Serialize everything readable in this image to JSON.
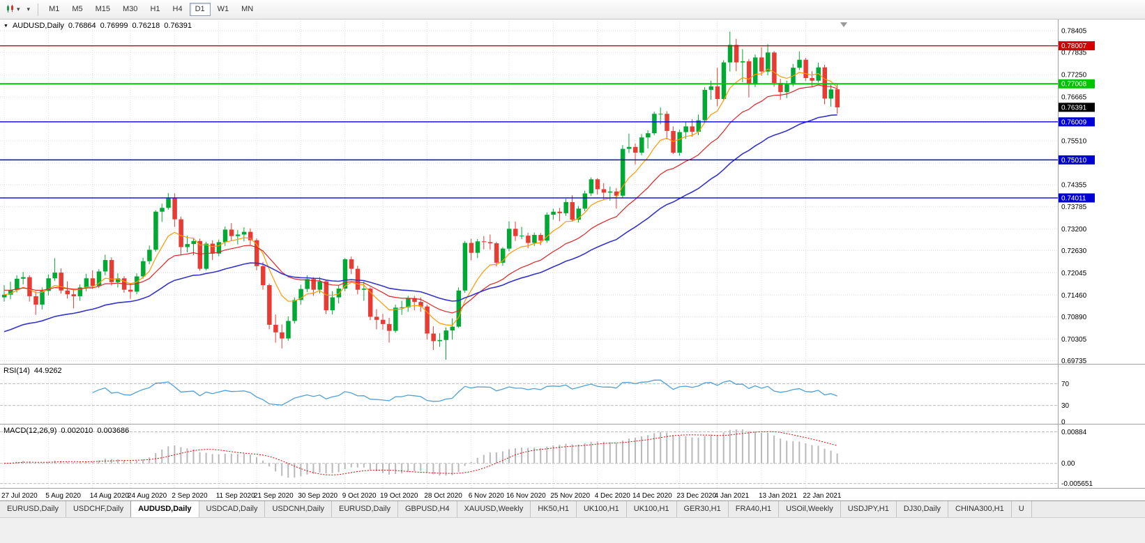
{
  "icons": {
    "dropdown": "▾",
    "collapse": "▼"
  },
  "toolbar": {
    "timeframes": [
      "M1",
      "M5",
      "M15",
      "M30",
      "H1",
      "H4",
      "D1",
      "W1",
      "MN"
    ],
    "active_timeframe": "D1"
  },
  "chart": {
    "symbol_label": "AUDUSD,Daily",
    "ohlc": {
      "open": "0.76864",
      "high": "0.76999",
      "low": "0.76218",
      "close": "0.76391"
    }
  },
  "indicators": {
    "rsi": {
      "label": "RSI(14)",
      "value": "44.9262"
    },
    "macd": {
      "label": "MACD(12,26,9)",
      "main_value": "0.002010",
      "signal_value": "0.003686"
    }
  },
  "price_scale": {
    "labels": [
      "0.78405",
      "0.77835",
      "0.77250",
      "0.76665",
      "0.75510",
      "0.74355",
      "0.73785",
      "0.73200",
      "0.72630",
      "0.72045",
      "0.71460",
      "0.70890",
      "0.70305",
      "0.69735"
    ],
    "badges": [
      {
        "text": "0.78007",
        "price": 0.78007,
        "color": "#d40000",
        "line": true,
        "width": 1.4
      },
      {
        "text": "0.77008",
        "price": 0.77008,
        "color": "#00c400",
        "line": true,
        "width": 2
      },
      {
        "text": "0.76391",
        "price": 0.76391,
        "color": "#000000",
        "line": false,
        "width": 1
      },
      {
        "text": "0.76009",
        "price": 0.76009,
        "color": "#0000d4",
        "line": true,
        "width": 1.4
      },
      {
        "text": "0.75010",
        "price": 0.7501,
        "color": "#0000d4",
        "line": true,
        "width": 1.4
      },
      {
        "text": "0.74011",
        "price": 0.74011,
        "color": "#0000d4",
        "line": true,
        "width": 1.4
      }
    ]
  },
  "time_scale": {
    "labels": [
      {
        "text": "27 Jul 2020",
        "i": 0
      },
      {
        "text": "5 Aug 2020",
        "i": 7
      },
      {
        "text": "14 Aug 2020",
        "i": 14
      },
      {
        "text": "24 Aug 2020",
        "i": 20
      },
      {
        "text": "2 Sep 2020",
        "i": 27
      },
      {
        "text": "11 Sep 2020",
        "i": 34
      },
      {
        "text": "21 Sep 2020",
        "i": 40
      },
      {
        "text": "30 Sep 2020",
        "i": 47
      },
      {
        "text": "9 Oct 2020",
        "i": 54
      },
      {
        "text": "19 Oct 2020",
        "i": 60
      },
      {
        "text": "28 Oct 2020",
        "i": 67
      },
      {
        "text": "6 Nov 2020",
        "i": 74
      },
      {
        "text": "16 Nov 2020",
        "i": 80
      },
      {
        "text": "25 Nov 2020",
        "i": 87
      },
      {
        "text": "4 Dec 2020",
        "i": 94
      },
      {
        "text": "14 Dec 2020",
        "i": 100
      },
      {
        "text": "23 Dec 2020",
        "i": 107
      },
      {
        "text": "4 Jan 2021",
        "i": 113
      },
      {
        "text": "13 Jan 2021",
        "i": 120
      },
      {
        "text": "22 Jan 2021",
        "i": 127
      }
    ]
  },
  "tabs": {
    "items": [
      "EURUSD,Daily",
      "USDCHF,Daily",
      "AUDUSD,Daily",
      "USDCAD,Daily",
      "USDCNH,Daily",
      "EURUSD,Daily",
      "GBPUSD,H4",
      "XAUUSD,Weekly",
      "HK50,H1",
      "UK100,H1",
      "UK100,H1",
      "GER30,H1",
      "FRA40,H1",
      "USOil,Weekly",
      "USDJPY,H1",
      "DJ30,Daily",
      "CHINA300,H1",
      "U"
    ],
    "active_index": 2
  },
  "chart_data": {
    "type": "candlestick",
    "symbol": "AUDUSD",
    "timeframe": "Daily",
    "title": "AUDUSD,Daily",
    "price_range": {
      "max": 0.7866,
      "min": 0.6969
    },
    "macd_range": {
      "max": 0.0105,
      "min": -0.0065
    },
    "grid_prices": [
      0.78405,
      0.77835,
      0.7725,
      0.76665,
      0.7608,
      0.7551,
      0.74925,
      0.74355,
      0.73785,
      0.732,
      0.7263,
      0.72045,
      0.7146,
      0.7089,
      0.70305,
      0.69735
    ],
    "macd_scale": [
      {
        "text": "0.00884",
        "value": 0.00884
      },
      {
        "text": "0.00",
        "value": 0
      },
      {
        "text": "-0.005651",
        "value": -0.005651
      }
    ],
    "rsi": {
      "period": 14,
      "color": "#4ea0d8",
      "levels": [
        {
          "text": "70",
          "value": 70,
          "line": true
        },
        {
          "text": "30",
          "value": 30,
          "line": true
        },
        {
          "text": "0",
          "value": 0,
          "line": false
        }
      ]
    },
    "macd": {
      "fast": 12,
      "slow": 26,
      "signal": 9
    },
    "moving_averages": [
      {
        "name": "fast-ma",
        "period": 8,
        "color": "#ff9900",
        "seed": null,
        "width": 1.2
      },
      {
        "name": "medium-ma",
        "period": 20,
        "color": "#e02424",
        "seed": 0.716,
        "width": 1.2
      },
      {
        "name": "slow-ma",
        "period": 40,
        "color": "#3333cc",
        "seed": 0.7045,
        "width": 1.6
      }
    ],
    "colors": {
      "up": "#00a933",
      "down": "#e63c34",
      "grid": "#dcdcdc",
      "separator": "#a0a0a0",
      "macd_hist": "#b9b9b9",
      "macd_signal": "#dd0000"
    },
    "candles": [
      [
        0.714,
        0.7172,
        0.7129,
        0.7147
      ],
      [
        0.7147,
        0.7181,
        0.7135,
        0.7159
      ],
      [
        0.7159,
        0.7198,
        0.7153,
        0.7189
      ],
      [
        0.7189,
        0.7207,
        0.7174,
        0.7193
      ],
      [
        0.7193,
        0.7198,
        0.7129,
        0.7143
      ],
      [
        0.7143,
        0.7156,
        0.7094,
        0.7121
      ],
      [
        0.7121,
        0.7166,
        0.7108,
        0.7157
      ],
      [
        0.7157,
        0.72,
        0.7145,
        0.719
      ],
      [
        0.719,
        0.7243,
        0.7183,
        0.7205
      ],
      [
        0.7205,
        0.7216,
        0.715,
        0.7158
      ],
      [
        0.7158,
        0.7182,
        0.7137,
        0.7148
      ],
      [
        0.7148,
        0.7162,
        0.7111,
        0.7143
      ],
      [
        0.7143,
        0.7174,
        0.7131,
        0.7166
      ],
      [
        0.7166,
        0.7202,
        0.7156,
        0.719
      ],
      [
        0.719,
        0.7211,
        0.7162,
        0.717
      ],
      [
        0.717,
        0.7214,
        0.7164,
        0.7208
      ],
      [
        0.7208,
        0.7252,
        0.7198,
        0.7238
      ],
      [
        0.7238,
        0.7245,
        0.7171,
        0.718
      ],
      [
        0.718,
        0.7203,
        0.7166,
        0.719
      ],
      [
        0.719,
        0.7196,
        0.7152,
        0.716
      ],
      [
        0.716,
        0.7177,
        0.7136,
        0.7155
      ],
      [
        0.7155,
        0.7203,
        0.7148,
        0.7195
      ],
      [
        0.7195,
        0.7244,
        0.7189,
        0.7235
      ],
      [
        0.7235,
        0.7276,
        0.7227,
        0.7265
      ],
      [
        0.7265,
        0.7369,
        0.726,
        0.7365
      ],
      [
        0.7365,
        0.7386,
        0.7338,
        0.7375
      ],
      [
        0.7375,
        0.7414,
        0.737,
        0.74
      ],
      [
        0.74,
        0.7413,
        0.7325,
        0.7345
      ],
      [
        0.7345,
        0.7352,
        0.725,
        0.7272
      ],
      [
        0.7272,
        0.7302,
        0.7258,
        0.728
      ],
      [
        0.728,
        0.7296,
        0.7251,
        0.7288
      ],
      [
        0.7288,
        0.7294,
        0.721,
        0.7215
      ],
      [
        0.7215,
        0.7286,
        0.7211,
        0.7281
      ],
      [
        0.7281,
        0.729,
        0.7238,
        0.7255
      ],
      [
        0.7255,
        0.7292,
        0.7248,
        0.7285
      ],
      [
        0.7285,
        0.7326,
        0.7275,
        0.7318
      ],
      [
        0.7318,
        0.7335,
        0.7289,
        0.7301
      ],
      [
        0.7301,
        0.7317,
        0.7279,
        0.7305
      ],
      [
        0.7305,
        0.7324,
        0.7287,
        0.7312
      ],
      [
        0.7312,
        0.7321,
        0.7278,
        0.729
      ],
      [
        0.729,
        0.7295,
        0.7211,
        0.7222
      ],
      [
        0.7222,
        0.7233,
        0.716,
        0.7172
      ],
      [
        0.7172,
        0.7176,
        0.7056,
        0.7068
      ],
      [
        0.7068,
        0.7095,
        0.7021,
        0.7048
      ],
      [
        0.7048,
        0.7069,
        0.7006,
        0.7032
      ],
      [
        0.7032,
        0.709,
        0.7026,
        0.7078
      ],
      [
        0.7078,
        0.714,
        0.7071,
        0.7133
      ],
      [
        0.7133,
        0.7173,
        0.7121,
        0.7162
      ],
      [
        0.7162,
        0.7198,
        0.7154,
        0.7188
      ],
      [
        0.7188,
        0.7193,
        0.7144,
        0.716
      ],
      [
        0.716,
        0.7193,
        0.715,
        0.7182
      ],
      [
        0.7182,
        0.7186,
        0.7096,
        0.7106
      ],
      [
        0.7106,
        0.7156,
        0.7095,
        0.714
      ],
      [
        0.714,
        0.7171,
        0.7124,
        0.7163
      ],
      [
        0.7163,
        0.7243,
        0.7156,
        0.724
      ],
      [
        0.724,
        0.7247,
        0.7201,
        0.7215
      ],
      [
        0.7215,
        0.7223,
        0.7148,
        0.716
      ],
      [
        0.716,
        0.7182,
        0.7131,
        0.7163
      ],
      [
        0.7163,
        0.7166,
        0.708,
        0.7089
      ],
      [
        0.7089,
        0.7109,
        0.7056,
        0.7081
      ],
      [
        0.7081,
        0.7097,
        0.7055,
        0.707
      ],
      [
        0.707,
        0.7086,
        0.7021,
        0.7052
      ],
      [
        0.7052,
        0.7121,
        0.7047,
        0.7113
      ],
      [
        0.7113,
        0.7131,
        0.7094,
        0.7114
      ],
      [
        0.7114,
        0.7144,
        0.7102,
        0.7138
      ],
      [
        0.7138,
        0.7144,
        0.7106,
        0.7128
      ],
      [
        0.7128,
        0.714,
        0.7102,
        0.7116
      ],
      [
        0.7116,
        0.7121,
        0.7029,
        0.7045
      ],
      [
        0.7045,
        0.7064,
        0.7002,
        0.7025
      ],
      [
        0.7025,
        0.7046,
        0.701,
        0.7028
      ],
      [
        0.7028,
        0.7061,
        0.6976,
        0.7053
      ],
      [
        0.7053,
        0.7085,
        0.7029,
        0.7063
      ],
      [
        0.7063,
        0.7166,
        0.706,
        0.7158
      ],
      [
        0.7158,
        0.7288,
        0.7152,
        0.7283
      ],
      [
        0.7283,
        0.7294,
        0.7237,
        0.7257
      ],
      [
        0.7257,
        0.7293,
        0.7243,
        0.7287
      ],
      [
        0.7287,
        0.7301,
        0.7266,
        0.7285
      ],
      [
        0.7285,
        0.7305,
        0.7265,
        0.7282
      ],
      [
        0.7282,
        0.7286,
        0.7221,
        0.7231
      ],
      [
        0.7231,
        0.7272,
        0.7223,
        0.7268
      ],
      [
        0.7268,
        0.734,
        0.7261,
        0.732
      ],
      [
        0.732,
        0.7339,
        0.7288,
        0.7301
      ],
      [
        0.7301,
        0.7325,
        0.7293,
        0.7302
      ],
      [
        0.7302,
        0.731,
        0.7269,
        0.7283
      ],
      [
        0.7283,
        0.731,
        0.7275,
        0.7304
      ],
      [
        0.7304,
        0.7309,
        0.7277,
        0.7289
      ],
      [
        0.7289,
        0.7363,
        0.7283,
        0.7357
      ],
      [
        0.7357,
        0.7373,
        0.7344,
        0.7365
      ],
      [
        0.7365,
        0.7375,
        0.734,
        0.7361
      ],
      [
        0.7361,
        0.7399,
        0.7354,
        0.739
      ],
      [
        0.739,
        0.7408,
        0.7339,
        0.7344
      ],
      [
        0.7344,
        0.738,
        0.7337,
        0.7373
      ],
      [
        0.7373,
        0.742,
        0.7366,
        0.7413
      ],
      [
        0.7413,
        0.7455,
        0.7406,
        0.745
      ],
      [
        0.745,
        0.7453,
        0.741,
        0.7424
      ],
      [
        0.7424,
        0.744,
        0.7396,
        0.7415
      ],
      [
        0.7415,
        0.7431,
        0.7394,
        0.7418
      ],
      [
        0.7418,
        0.7427,
        0.7373,
        0.7407
      ],
      [
        0.7407,
        0.754,
        0.7402,
        0.753
      ],
      [
        0.753,
        0.757,
        0.7519,
        0.7535
      ],
      [
        0.7535,
        0.7544,
        0.7489,
        0.752
      ],
      [
        0.752,
        0.7569,
        0.7513,
        0.756
      ],
      [
        0.756,
        0.7579,
        0.7531,
        0.7571
      ],
      [
        0.7571,
        0.7628,
        0.7566,
        0.7622
      ],
      [
        0.7622,
        0.7639,
        0.7595,
        0.7622
      ],
      [
        0.7622,
        0.7629,
        0.7555,
        0.7577
      ],
      [
        0.7577,
        0.7589,
        0.7516,
        0.752
      ],
      [
        0.752,
        0.7581,
        0.7512,
        0.7574
      ],
      [
        0.7574,
        0.76,
        0.7556,
        0.7589
      ],
      [
        0.7589,
        0.7608,
        0.7562,
        0.7575
      ],
      [
        0.7575,
        0.762,
        0.7566,
        0.7605
      ],
      [
        0.7605,
        0.7692,
        0.7597,
        0.7685
      ],
      [
        0.7685,
        0.7709,
        0.7659,
        0.7694
      ],
      [
        0.7694,
        0.7743,
        0.7642,
        0.7661
      ],
      [
        0.7661,
        0.7763,
        0.7656,
        0.7757
      ],
      [
        0.7757,
        0.7838,
        0.7733,
        0.7803
      ],
      [
        0.7803,
        0.7819,
        0.7734,
        0.7757
      ],
      [
        0.7757,
        0.7792,
        0.7705,
        0.776
      ],
      [
        0.776,
        0.7766,
        0.7665,
        0.7699
      ],
      [
        0.7699,
        0.7778,
        0.7692,
        0.777
      ],
      [
        0.777,
        0.7797,
        0.7722,
        0.7733
      ],
      [
        0.7733,
        0.7805,
        0.7723,
        0.7783
      ],
      [
        0.7783,
        0.7787,
        0.7693,
        0.7703
      ],
      [
        0.7703,
        0.7714,
        0.7659,
        0.7679
      ],
      [
        0.7679,
        0.7709,
        0.7663,
        0.7699
      ],
      [
        0.7699,
        0.7753,
        0.7694,
        0.7743
      ],
      [
        0.7743,
        0.7786,
        0.7737,
        0.7764
      ],
      [
        0.7764,
        0.7769,
        0.7708,
        0.7716
      ],
      [
        0.7716,
        0.7734,
        0.7694,
        0.7709
      ],
      [
        0.7709,
        0.7756,
        0.7704,
        0.7744
      ],
      [
        0.7744,
        0.7751,
        0.7647,
        0.7662
      ],
      [
        0.7662,
        0.7698,
        0.7641,
        0.7686
      ],
      [
        0.76864,
        0.76999,
        0.76218,
        0.76391
      ]
    ]
  }
}
